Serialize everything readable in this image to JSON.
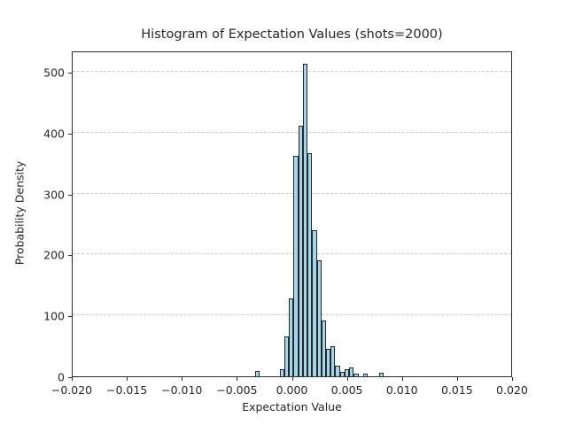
{
  "title": "Histogram of Expectation Values (shots=2000)",
  "chart_data": {
    "type": "bar",
    "subtype": "histogram",
    "title": "Histogram of Expectation Values (shots=2000)",
    "xlabel": "Expectation Value",
    "ylabel": "Probability Density",
    "xlim": [
      -0.02,
      0.02
    ],
    "ylim": [
      0,
      535
    ],
    "grid": "horizontal-dashed",
    "legend": "none",
    "bar_color": "#a9d4e6",
    "bar_edge_color": "#1f2a30",
    "bin_width": 0.00042,
    "x_ticks": [
      {
        "value": -0.02,
        "label": "−0.020"
      },
      {
        "value": -0.015,
        "label": "−0.015"
      },
      {
        "value": -0.01,
        "label": "−0.010"
      },
      {
        "value": -0.005,
        "label": "−0.005"
      },
      {
        "value": 0.0,
        "label": "0.000"
      },
      {
        "value": 0.005,
        "label": "0.005"
      },
      {
        "value": 0.01,
        "label": "0.010"
      },
      {
        "value": 0.015,
        "label": "0.015"
      },
      {
        "value": 0.02,
        "label": "0.020"
      }
    ],
    "y_ticks": [
      {
        "value": 0,
        "label": "0"
      },
      {
        "value": 100,
        "label": "100"
      },
      {
        "value": 200,
        "label": "200"
      },
      {
        "value": 300,
        "label": "300"
      },
      {
        "value": 400,
        "label": "400"
      },
      {
        "value": 500,
        "label": "500"
      }
    ],
    "bars": [
      {
        "x": -0.00325,
        "density": 9
      },
      {
        "x": -0.00097,
        "density": 12
      },
      {
        "x": -0.00055,
        "density": 65
      },
      {
        "x": -0.00013,
        "density": 128
      },
      {
        "x": 0.00029,
        "density": 362
      },
      {
        "x": 0.00071,
        "density": 412
      },
      {
        "x": 0.00113,
        "density": 513
      },
      {
        "x": 0.00155,
        "density": 366
      },
      {
        "x": 0.00197,
        "density": 240
      },
      {
        "x": 0.00239,
        "density": 190
      },
      {
        "x": 0.00281,
        "density": 92
      },
      {
        "x": 0.00323,
        "density": 45
      },
      {
        "x": 0.00365,
        "density": 50
      },
      {
        "x": 0.00407,
        "density": 18
      },
      {
        "x": 0.00449,
        "density": 8
      },
      {
        "x": 0.00491,
        "density": 12
      },
      {
        "x": 0.00533,
        "density": 14
      },
      {
        "x": 0.00575,
        "density": 5
      },
      {
        "x": 0.00659,
        "density": 4
      },
      {
        "x": 0.00806,
        "density": 6
      }
    ]
  }
}
